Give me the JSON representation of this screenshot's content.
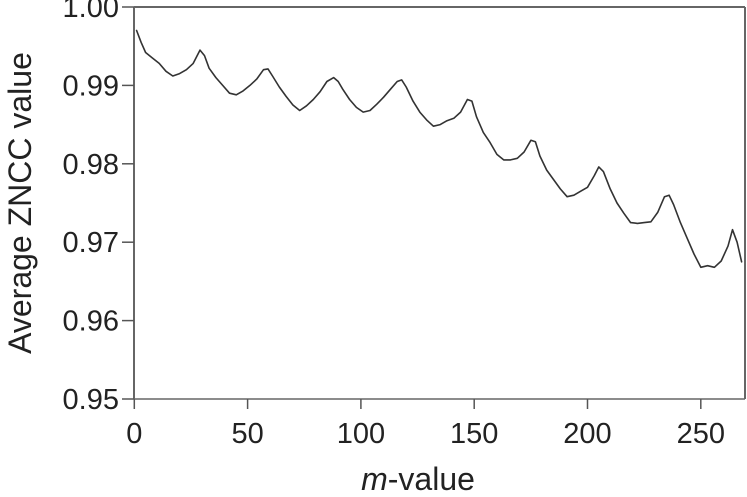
{
  "chart_data": {
    "type": "line",
    "title": "",
    "xlabel": "m-value",
    "xlabel_italic_part": "m",
    "xlabel_rest": "-value",
    "ylabel": "Average ZNCC value",
    "xlim": [
      0,
      269
    ],
    "ylim": [
      0.95,
      1.0
    ],
    "x_ticks": [
      0,
      50,
      100,
      150,
      200,
      250
    ],
    "x_tick_labels": [
      "0",
      "50",
      "100",
      "150",
      "200",
      "250"
    ],
    "y_ticks": [
      0.95,
      0.96,
      0.97,
      0.98,
      0.99,
      1.0
    ],
    "y_tick_labels": [
      "0.95",
      "0.96",
      "0.97",
      "0.98",
      "0.99",
      "1.00"
    ],
    "grid": false,
    "legend": null,
    "line_color": "#333333",
    "series": [
      {
        "name": "Average ZNCC",
        "x": [
          1,
          3,
          5,
          8,
          11,
          14,
          17,
          20,
          23,
          26,
          29,
          31,
          33,
          36,
          39,
          42,
          45,
          48,
          51,
          54,
          57,
          59,
          61,
          64,
          67,
          70,
          73,
          76,
          79,
          82,
          85,
          88,
          90,
          92,
          95,
          98,
          101,
          104,
          107,
          110,
          113,
          116,
          118,
          120,
          123,
          126,
          129,
          132,
          135,
          138,
          141,
          144,
          147,
          149,
          151,
          154,
          157,
          160,
          163,
          166,
          169,
          172,
          175,
          177,
          179,
          182,
          185,
          188,
          191,
          194,
          197,
          200,
          203,
          205,
          207,
          210,
          213,
          216,
          219,
          222,
          225,
          228,
          231,
          234,
          236,
          238,
          241,
          244,
          247,
          250,
          253,
          256,
          259,
          262,
          264,
          266,
          268
        ],
        "values": [
          0.997,
          0.9955,
          0.9942,
          0.9935,
          0.9928,
          0.9918,
          0.9912,
          0.9915,
          0.992,
          0.9928,
          0.9945,
          0.9938,
          0.9922,
          0.991,
          0.99,
          0.989,
          0.9888,
          0.9893,
          0.99,
          0.9908,
          0.992,
          0.9921,
          0.9912,
          0.9898,
          0.9886,
          0.9875,
          0.9868,
          0.9874,
          0.9882,
          0.9892,
          0.9905,
          0.991,
          0.9905,
          0.9895,
          0.9882,
          0.9872,
          0.9866,
          0.9868,
          0.9876,
          0.9885,
          0.9895,
          0.9905,
          0.9907,
          0.9898,
          0.988,
          0.9866,
          0.9856,
          0.9848,
          0.985,
          0.9855,
          0.9858,
          0.9866,
          0.9882,
          0.988,
          0.986,
          0.984,
          0.9827,
          0.9812,
          0.9805,
          0.9805,
          0.9807,
          0.9815,
          0.983,
          0.9828,
          0.981,
          0.9792,
          0.978,
          0.9768,
          0.9758,
          0.976,
          0.9765,
          0.977,
          0.9785,
          0.9796,
          0.979,
          0.9768,
          0.975,
          0.9737,
          0.9725,
          0.9724,
          0.9725,
          0.9726,
          0.9738,
          0.9758,
          0.976,
          0.9748,
          0.9725,
          0.9705,
          0.9685,
          0.9668,
          0.967,
          0.9668,
          0.9676,
          0.9695,
          0.9716,
          0.97,
          0.9675
        ]
      }
    ]
  }
}
